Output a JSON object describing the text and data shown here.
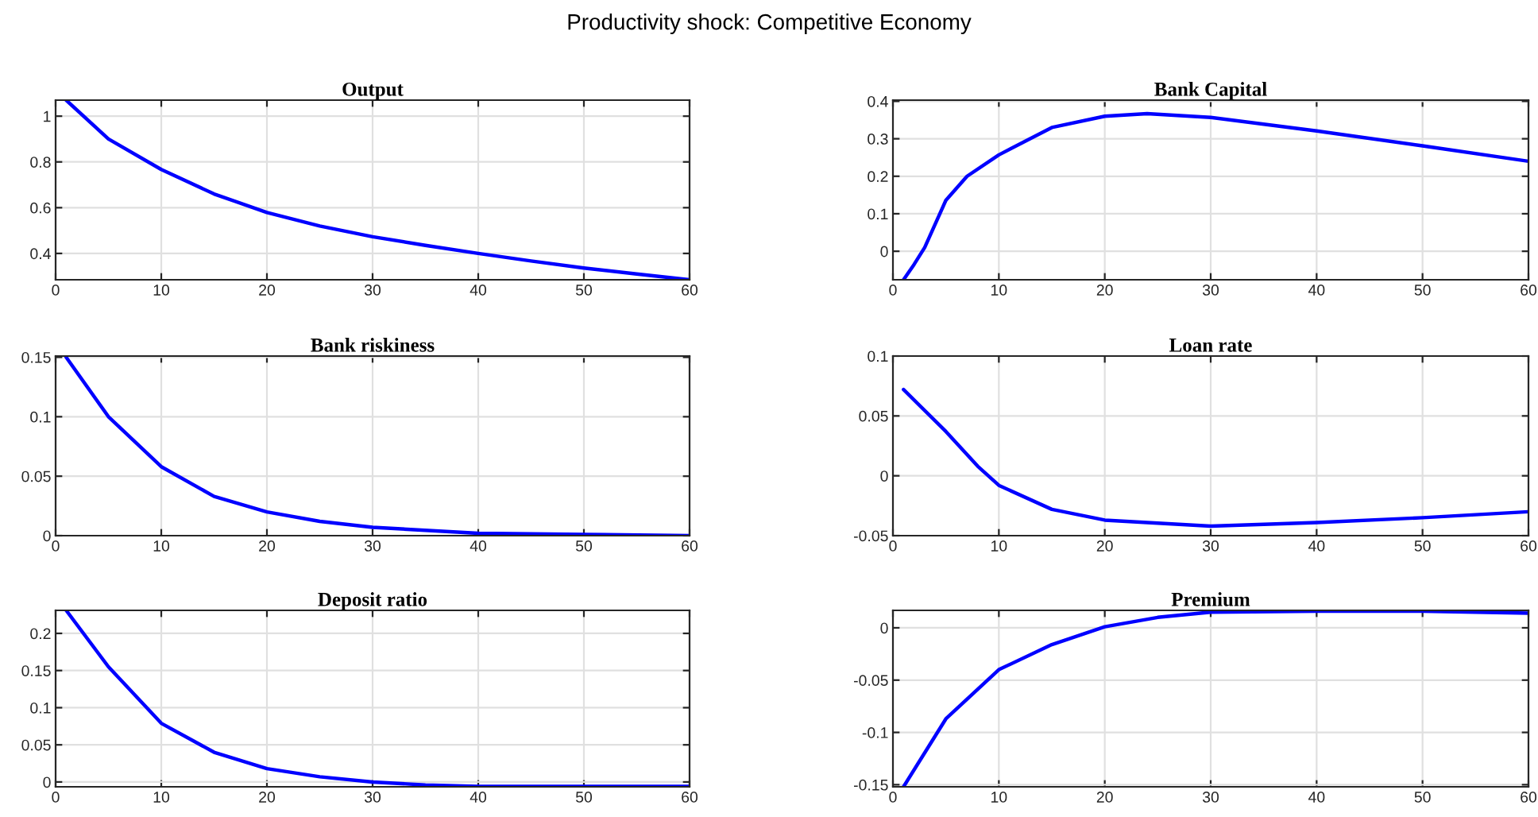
{
  "chart_data": [
    {
      "type": "line",
      "title": "Output",
      "annotations": [
        "Productivity shock: Competitive Economy"
      ],
      "xlim": [
        0,
        60
      ],
      "xticks": [
        0,
        10,
        20,
        30,
        40,
        50,
        60
      ],
      "ylim": [
        0.285,
        1.07
      ],
      "yticks": [
        0.4,
        0.6,
        0.8,
        1
      ],
      "grid": true,
      "series": [
        {
          "color": "#0000ff",
          "x": [
            1,
            5,
            10,
            15,
            20,
            25,
            30,
            35,
            40,
            45,
            50,
            55,
            60
          ],
          "values": [
            1.07,
            0.9,
            0.767,
            0.66,
            0.579,
            0.52,
            0.473,
            0.435,
            0.4,
            0.367,
            0.336,
            0.31,
            0.285
          ]
        }
      ]
    },
    {
      "type": "line",
      "title": "Bank Capital",
      "xlim": [
        0,
        60
      ],
      "xticks": [
        0,
        10,
        20,
        30,
        40,
        50,
        60
      ],
      "ylim": [
        -0.076,
        0.403
      ],
      "yticks": [
        0,
        0.1,
        0.2,
        0.3,
        0.4
      ],
      "grid": true,
      "series": [
        {
          "color": "#0000ff",
          "x": [
            1,
            2,
            3,
            5,
            7,
            10,
            15,
            20,
            24,
            30,
            40,
            50,
            60
          ],
          "values": [
            -0.076,
            -0.035,
            0.01,
            0.136,
            0.2,
            0.257,
            0.33,
            0.36,
            0.367,
            0.357,
            0.321,
            0.281,
            0.24
          ]
        }
      ]
    },
    {
      "type": "line",
      "title": "Bank riskiness",
      "xlim": [
        0,
        60
      ],
      "xticks": [
        0,
        10,
        20,
        30,
        40,
        50,
        60
      ],
      "ylim": [
        0,
        0.151
      ],
      "yticks": [
        0,
        0.05,
        0.1,
        0.15
      ],
      "grid": true,
      "series": [
        {
          "color": "#0000ff",
          "x": [
            1,
            5,
            10,
            15,
            20,
            25,
            30,
            40,
            50,
            60
          ],
          "values": [
            0.15,
            0.1,
            0.058,
            0.033,
            0.02,
            0.012,
            0.007,
            0.002,
            0.001,
            0.0
          ]
        }
      ]
    },
    {
      "type": "line",
      "title": "Loan rate",
      "xlim": [
        0,
        60
      ],
      "xticks": [
        0,
        10,
        20,
        30,
        40,
        50,
        60
      ],
      "ylim": [
        -0.05,
        0.1
      ],
      "yticks": [
        -0.05,
        0,
        0.05,
        0.1
      ],
      "grid": true,
      "series": [
        {
          "color": "#0000ff",
          "x": [
            1,
            5,
            8,
            10,
            15,
            20,
            30,
            40,
            50,
            60
          ],
          "values": [
            0.072,
            0.037,
            0.008,
            -0.008,
            -0.028,
            -0.037,
            -0.042,
            -0.039,
            -0.035,
            -0.03
          ]
        }
      ]
    },
    {
      "type": "line",
      "title": "Deposit ratio",
      "xlim": [
        0,
        60
      ],
      "xticks": [
        0,
        10,
        20,
        30,
        40,
        50,
        60
      ],
      "ylim": [
        -0.0065,
        0.231
      ],
      "yticks": [
        0,
        0.05,
        0.1,
        0.15,
        0.2
      ],
      "grid": true,
      "series": [
        {
          "color": "#0000ff",
          "x": [
            1,
            5,
            10,
            15,
            20,
            25,
            30,
            35,
            40,
            50,
            60
          ],
          "values": [
            0.231,
            0.155,
            0.079,
            0.04,
            0.018,
            0.007,
            0.0,
            -0.004,
            -0.006,
            -0.006,
            -0.006
          ]
        }
      ]
    },
    {
      "type": "line",
      "title": "Premium",
      "xlim": [
        0,
        60
      ],
      "xticks": [
        0,
        10,
        20,
        30,
        40,
        50,
        60
      ],
      "ylim": [
        -0.152,
        0.0167
      ],
      "yticks": [
        -0.15,
        -0.1,
        -0.05,
        0
      ],
      "grid": true,
      "series": [
        {
          "color": "#0000ff",
          "x": [
            1,
            5,
            10,
            15,
            20,
            25,
            30,
            40,
            50,
            60
          ],
          "values": [
            -0.152,
            -0.087,
            -0.04,
            -0.016,
            0.001,
            0.01,
            0.015,
            0.016,
            0.016,
            0.014
          ]
        }
      ]
    }
  ]
}
